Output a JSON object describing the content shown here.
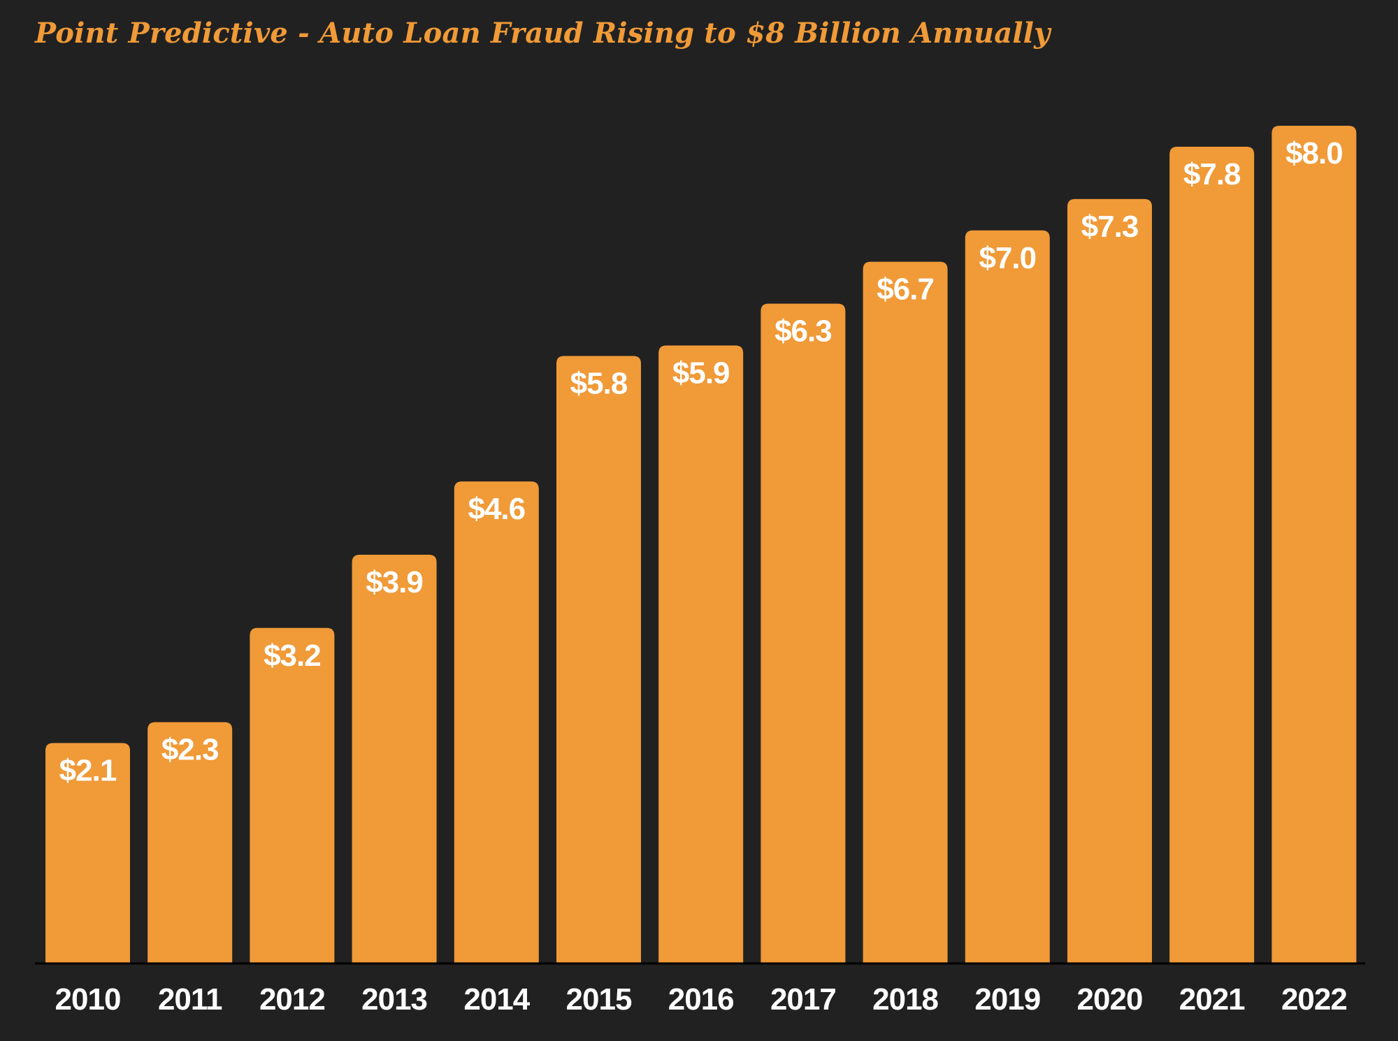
{
  "chart_data": {
    "type": "bar",
    "title": "Point Predictive - Auto Loan Fraud Rising to $8 Billion Annually",
    "xlabel": "",
    "ylabel": "",
    "categories": [
      "2010",
      "2011",
      "2012",
      "2013",
      "2014",
      "2015",
      "2016",
      "2017",
      "2018",
      "2019",
      "2020",
      "2021",
      "2022"
    ],
    "values": [
      2.1,
      2.3,
      3.2,
      3.9,
      4.6,
      5.8,
      5.9,
      6.3,
      6.7,
      7.0,
      7.3,
      7.8,
      8.0
    ],
    "data_labels": [
      "$2.1",
      "$2.3",
      "$3.2",
      "$3.9",
      "$4.6",
      "$5.8",
      "$5.9",
      "$6.3",
      "$6.7",
      "$7.0",
      "$7.3",
      "$7.8",
      "$8.0"
    ],
    "ylim": [
      0,
      8
    ],
    "grid": false,
    "legend": "none",
    "colors": {
      "background": "#212121",
      "bar": "#F09A38",
      "title": "#F09A38",
      "bar_label": "#FFFFFF",
      "tick_label": "#FFFFFF",
      "axis_line": "#000000"
    }
  }
}
